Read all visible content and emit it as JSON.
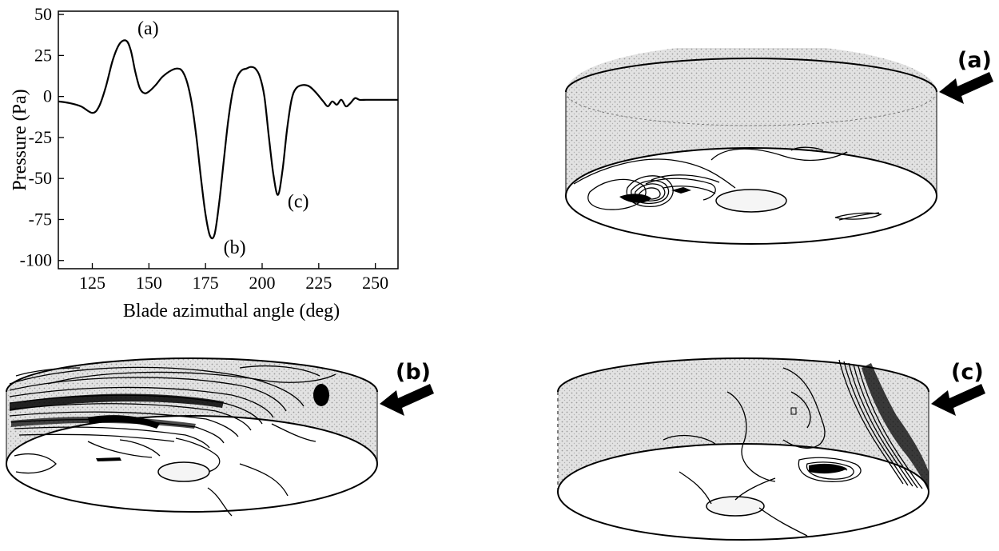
{
  "chart_data": {
    "type": "line",
    "xlabel": "Blade azimuthal angle (deg)",
    "ylabel": "Pressure (Pa)",
    "xlim": [
      110,
      260
    ],
    "ylim": [
      -105,
      52
    ],
    "x_ticks": [
      "125",
      "150",
      "175",
      "200",
      "225",
      "250"
    ],
    "y_ticks": [
      "50",
      "25",
      "0",
      "-25",
      "-50",
      "-75",
      "-100"
    ],
    "grid": false,
    "series": [
      {
        "x": [
          110,
          115,
          120,
          125,
          128,
          131,
          134,
          137,
          140,
          142,
          144,
          146,
          148,
          150,
          153,
          156,
          160,
          163,
          165,
          167,
          169,
          171,
          173,
          175,
          177,
          179,
          181,
          183,
          185,
          187,
          189,
          191,
          193,
          195,
          197,
          199,
          201,
          203,
          205,
          207,
          209,
          211,
          213,
          215,
          218,
          221,
          224,
          227,
          229,
          231,
          233,
          235,
          237,
          239,
          241,
          243,
          246,
          250,
          255,
          260
        ],
        "y": [
          -3,
          -4,
          -6,
          -10,
          -6,
          6,
          22,
          32,
          34,
          28,
          15,
          5,
          2,
          3,
          7,
          12,
          16,
          17,
          15,
          8,
          -5,
          -25,
          -50,
          -72,
          -85,
          -84,
          -65,
          -40,
          -15,
          3,
          12,
          16,
          17,
          18,
          17,
          12,
          0,
          -25,
          -48,
          -60,
          -45,
          -20,
          -2,
          5,
          7,
          6,
          2,
          -3,
          -6,
          -3,
          -5,
          -2,
          -6,
          -4,
          -1,
          -2,
          -2,
          -2,
          -2,
          -2
        ]
      }
    ],
    "annotations": [
      {
        "label": "(a)",
        "x": 140,
        "y": 34
      },
      {
        "label": "(b)",
        "x": 178,
        "y": -85
      },
      {
        "label": "(c)",
        "x": 207,
        "y": -60
      }
    ]
  },
  "panels": {
    "a": {
      "tag": "(a)"
    },
    "b": {
      "tag": "(b)"
    },
    "c": {
      "tag": "(c)"
    }
  },
  "colors": {
    "line": "#000000",
    "shading": "#cccccc"
  }
}
